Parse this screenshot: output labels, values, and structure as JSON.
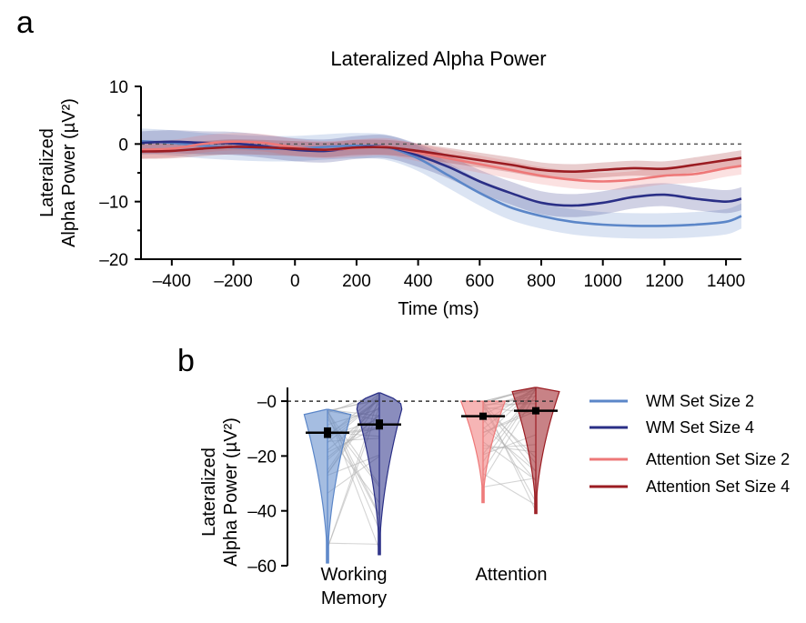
{
  "colors": {
    "wm2": "#5b86c8",
    "wm4": "#2a2f86",
    "att2": "#ee7878",
    "att4": "#9b1c22",
    "paired_lines": "#b0b0b0",
    "zero_line": "#555555"
  },
  "panel_a": {
    "letter": "a"
  },
  "panel_b": {
    "letter": "b"
  },
  "chart_data": [
    {
      "type": "line",
      "title": "Lateralized Alpha Power",
      "xlabel": "Time (ms)",
      "ylabel_line1": "Lateralized",
      "ylabel_line2": "Alpha Power (µV²)",
      "xlim": [
        -500,
        1450
      ],
      "ylim": [
        -20,
        10
      ],
      "xticks": [
        -400,
        -200,
        0,
        200,
        400,
        600,
        800,
        1000,
        1200,
        1400
      ],
      "xtick_labels": [
        "–400",
        "–200",
        "0",
        "200",
        "400",
        "600",
        "800",
        "1000",
        "1200",
        "1400"
      ],
      "yticks": [
        10,
        0,
        -10,
        -20
      ],
      "ytick_labels": [
        "10",
        "0",
        "–10",
        "–20"
      ],
      "reference_line": 0,
      "shaded_error_bands": true,
      "x": [
        -500,
        -400,
        -300,
        -200,
        -100,
        0,
        100,
        200,
        300,
        400,
        500,
        600,
        700,
        800,
        900,
        1000,
        1100,
        1200,
        1300,
        1400,
        1450
      ],
      "series": [
        {
          "key": "wm2",
          "name": "WM Set Size 2",
          "values": [
            0.5,
            0.2,
            -0.3,
            -0.6,
            -0.8,
            -0.8,
            -0.5,
            -0.3,
            -0.6,
            -2.5,
            -5.5,
            -8.5,
            -11,
            -12.5,
            -13.5,
            -14,
            -14.2,
            -14.2,
            -14,
            -13.5,
            -12.5
          ],
          "error": 2.2
        },
        {
          "key": "wm4",
          "name": "WM Set Size 4",
          "values": [
            0.2,
            0.4,
            0.2,
            0.1,
            -0.4,
            -1.0,
            -1.2,
            -0.6,
            -0.5,
            -2.0,
            -4.0,
            -6.5,
            -8.5,
            -10.2,
            -10.7,
            -10.2,
            -9.2,
            -8.8,
            -9.5,
            -10,
            -9.5
          ],
          "error": 2.0
        },
        {
          "key": "att2",
          "name": "Attention Set Size 2",
          "values": [
            -1.0,
            -0.8,
            0.0,
            0.4,
            0.2,
            -0.6,
            -1.0,
            -0.7,
            -0.5,
            -1.5,
            -2.5,
            -3.5,
            -4.5,
            -5.5,
            -6.2,
            -6.5,
            -6.2,
            -5.5,
            -5.2,
            -4.2,
            -3.8
          ],
          "error": 1.5
        },
        {
          "key": "att4",
          "name": "Attention Set Size 4",
          "values": [
            -1.3,
            -1.2,
            -0.8,
            -0.5,
            -0.6,
            -0.8,
            -1.0,
            -0.6,
            -0.6,
            -1.2,
            -2.0,
            -2.8,
            -3.6,
            -4.5,
            -4.8,
            -4.5,
            -4.2,
            -4.3,
            -3.6,
            -2.8,
            -2.4
          ],
          "error": 1.3
        }
      ]
    },
    {
      "type": "violin",
      "xlabel": "",
      "ylabel_line1": "Lateralized",
      "ylabel_line2": "Alpha Power (µV²)",
      "ylim": [
        -60,
        5
      ],
      "yticks": [
        0,
        -20,
        -40,
        -60
      ],
      "ytick_labels": [
        "–0",
        "–20",
        "–40",
        "–60"
      ],
      "category_labels": [
        [
          "Working",
          "Memory"
        ],
        [
          "Attention"
        ]
      ],
      "reference_line": 0,
      "paired_subject_lines": true,
      "series": [
        {
          "key": "wm2",
          "name": "WM Set Size 2",
          "group": 0,
          "mean": -11.5,
          "sem": 1.6,
          "min": -59,
          "max": -3
        },
        {
          "key": "wm4",
          "name": "WM Set Size 4",
          "group": 0,
          "mean": -8.5,
          "sem": 1.5,
          "min": -56,
          "max": 3
        },
        {
          "key": "att2",
          "name": "Attention Set Size 2",
          "group": 1,
          "mean": -5.5,
          "sem": 0.9,
          "min": -37,
          "max": 0
        },
        {
          "key": "att4",
          "name": "Attention Set Size 4",
          "group": 1,
          "mean": -3.5,
          "sem": 0.9,
          "min": -41,
          "max": 5
        }
      ],
      "legend": {
        "position": "right",
        "entries": [
          "WM Set Size 2",
          "WM Set Size 4",
          "Attention Set Size 2",
          "Attention Set Size 4"
        ]
      }
    }
  ]
}
